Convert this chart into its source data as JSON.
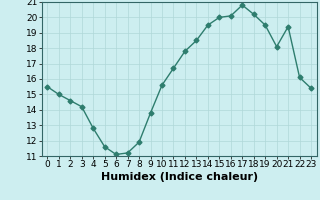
{
  "x": [
    0,
    1,
    2,
    3,
    4,
    5,
    6,
    7,
    8,
    9,
    10,
    11,
    12,
    13,
    14,
    15,
    16,
    17,
    18,
    19,
    20,
    21,
    22,
    23
  ],
  "y": [
    15.5,
    15.0,
    14.6,
    14.2,
    12.8,
    11.6,
    11.1,
    11.2,
    11.9,
    13.8,
    15.6,
    16.7,
    17.8,
    18.5,
    19.5,
    20.0,
    20.1,
    20.8,
    20.2,
    19.5,
    18.1,
    19.4,
    16.1,
    15.4
  ],
  "xlabel": "Humidex (Indice chaleur)",
  "xlim": [
    -0.5,
    23.5
  ],
  "ylim": [
    11,
    21
  ],
  "yticks": [
    11,
    12,
    13,
    14,
    15,
    16,
    17,
    18,
    19,
    20,
    21
  ],
  "xticks": [
    0,
    1,
    2,
    3,
    4,
    5,
    6,
    7,
    8,
    9,
    10,
    11,
    12,
    13,
    14,
    15,
    16,
    17,
    18,
    19,
    20,
    21,
    22,
    23
  ],
  "line_color": "#2e7d6e",
  "marker": "D",
  "marker_size": 2.5,
  "bg_color": "#cdeef0",
  "grid_color": "#b0d8d8",
  "xlabel_fontsize": 8,
  "tick_fontsize": 6.5,
  "line_width": 1.0
}
